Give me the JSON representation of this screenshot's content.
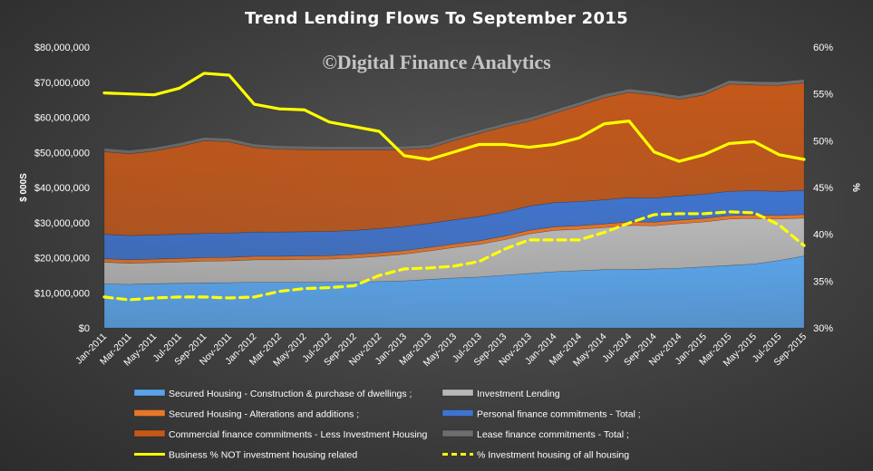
{
  "chart_data": {
    "type": "area",
    "title": "Trend Lending Flows To September 2015",
    "watermark": "©Digital Finance Analytics",
    "ylabel": "$ 000S",
    "y2label": "%",
    "ylim": [
      0,
      80000000
    ],
    "y2lim": [
      30,
      60
    ],
    "yticks": [
      "$0",
      "$10,000,000",
      "$20,000,000",
      "$30,000,000",
      "$40,000,000",
      "$50,000,000",
      "$60,000,000",
      "$70,000,000",
      "$80,000,000"
    ],
    "y2ticks": [
      "30%",
      "35%",
      "40%",
      "45%",
      "50%",
      "55%",
      "60%"
    ],
    "xtick_labels": [
      "Jan-2011",
      "Mar-2011",
      "May-2011",
      "Jul-2011",
      "Sep-2011",
      "Nov-2011",
      "Jan-2012",
      "Mar-2012",
      "May-2012",
      "Jul-2012",
      "Sep-2012",
      "Nov-2012",
      "Jan-2013",
      "Mar-2013",
      "May-2013",
      "Jul-2013",
      "Sep-2013",
      "Nov-2013",
      "Jan-2014",
      "Mar-2014",
      "May-2014",
      "Jul-2014",
      "Sep-2014",
      "Nov-2014",
      "Jan-2015",
      "Mar-2015",
      "May-2015",
      "Jul-2015",
      "Sep-2015"
    ],
    "x": [
      "Jan-2011",
      "Mar-2011",
      "May-2011",
      "Jul-2011",
      "Sep-2011",
      "Nov-2011",
      "Jan-2012",
      "Mar-2012",
      "May-2012",
      "Jul-2012",
      "Sep-2012",
      "Nov-2012",
      "Jan-2013",
      "Mar-2013",
      "May-2013",
      "Jul-2013",
      "Sep-2013",
      "Nov-2013",
      "Jan-2014",
      "Mar-2014",
      "May-2014",
      "Jul-2014",
      "Sep-2014",
      "Nov-2014",
      "Jan-2015",
      "Mar-2015",
      "May-2015",
      "Jul-2015",
      "Sep-2015"
    ],
    "stack_series": [
      {
        "name": "Secured Housing - Construction & purchase of dwellings ;",
        "color": "#5aa3e8",
        "values": [
          12.5,
          12.4,
          12.6,
          12.7,
          12.8,
          12.9,
          13.0,
          13.0,
          13.0,
          13.0,
          13.1,
          13.2,
          13.4,
          13.8,
          14.2,
          14.5,
          15.0,
          15.5,
          16.0,
          16.3,
          16.6,
          16.6,
          16.8,
          17.0,
          17.4,
          17.8,
          18.2,
          19.2,
          20.5
        ]
      },
      {
        "name": "Investment Lending",
        "color": "#b8b8b8",
        "values": [
          6.2,
          6.0,
          6.0,
          6.1,
          6.2,
          6.2,
          6.4,
          6.4,
          6.5,
          6.6,
          6.8,
          7.2,
          7.6,
          8.1,
          8.7,
          9.3,
          10.1,
          11.3,
          11.8,
          11.8,
          12.0,
          12.6,
          12.3,
          12.7,
          12.8,
          13.2,
          13.0,
          11.8,
          10.8
        ]
      },
      {
        "name": "Secured Housing - Alterations and additions ;",
        "color": "#e8762a",
        "values": [
          1.0,
          1.0,
          1.0,
          1.0,
          1.0,
          1.0,
          1.0,
          1.0,
          1.0,
          1.0,
          1.0,
          1.0,
          1.0,
          1.0,
          1.0,
          1.0,
          1.0,
          1.0,
          1.0,
          1.0,
          1.0,
          1.0,
          1.0,
          1.0,
          1.0,
          1.0,
          1.0,
          1.0,
          1.0
        ]
      },
      {
        "name": "Personal finance commitments - Total ;",
        "color": "#3f74cf",
        "values": [
          7.0,
          6.9,
          6.9,
          6.9,
          6.9,
          6.9,
          6.9,
          6.9,
          6.9,
          6.9,
          6.9,
          6.9,
          6.9,
          6.9,
          6.9,
          6.9,
          6.9,
          6.9,
          6.9,
          6.9,
          6.9,
          6.9,
          6.9,
          6.9,
          6.9,
          6.9,
          6.9,
          6.9,
          6.9
        ]
      },
      {
        "name": "Commercial finance commitments - Less Investment Housing",
        "color": "#c4581a",
        "values": [
          23.5,
          23.3,
          23.9,
          25.0,
          26.4,
          26.0,
          24.1,
          23.6,
          23.4,
          23.2,
          22.9,
          22.4,
          21.9,
          21.4,
          22.6,
          23.7,
          24.3,
          24.2,
          25.4,
          27.3,
          29.1,
          30.0,
          29.3,
          27.5,
          28.3,
          30.6,
          30.1,
          30.2,
          30.6
        ]
      },
      {
        "name": "Lease finance commitments - Total ;",
        "color": "#6e6e6e",
        "values": [
          1.0,
          1.0,
          1.0,
          1.0,
          1.0,
          1.0,
          1.0,
          1.0,
          1.0,
          1.0,
          1.0,
          1.0,
          1.0,
          1.0,
          1.0,
          1.0,
          1.0,
          1.0,
          1.0,
          1.0,
          1.0,
          1.0,
          1.0,
          1.0,
          1.0,
          1.0,
          1.0,
          1.0,
          1.0
        ]
      }
    ],
    "value_unit_note_multiplier": 1000000,
    "line_series": [
      {
        "name": "Business % NOT investment housing related",
        "color": "#ffff00",
        "style": "solid",
        "values": [
          55.1,
          55.0,
          54.9,
          55.6,
          57.2,
          57.0,
          53.9,
          53.4,
          53.3,
          52.0,
          51.5,
          51.0,
          48.4,
          48.0,
          48.8,
          49.6,
          49.6,
          49.3,
          49.6,
          50.3,
          51.8,
          52.1,
          48.8,
          47.8,
          48.5,
          49.7,
          49.9,
          48.5,
          48.0
        ]
      },
      {
        "name": "% Investment housing of all housing",
        "color": "#ffff00",
        "style": "dashed",
        "values": [
          33.3,
          33.0,
          33.2,
          33.3,
          33.3,
          33.2,
          33.3,
          33.9,
          34.2,
          34.3,
          34.5,
          35.6,
          36.3,
          36.4,
          36.6,
          37.1,
          38.4,
          39.4,
          39.4,
          39.4,
          40.2,
          41.2,
          42.1,
          42.2,
          42.2,
          42.4,
          42.3,
          41.0,
          38.8
        ]
      }
    ],
    "legend": {
      "position": "bottom",
      "order": [
        "Secured Housing - Construction & purchase of dwellings ;",
        "Investment Lending",
        "Secured Housing - Alterations and additions ;",
        "Personal finance commitments - Total ;",
        "Commercial finance commitments - Less Investment Housing",
        "Lease finance commitments - Total ;",
        "Business % NOT investment housing related",
        "% Investment housing of all housing"
      ]
    },
    "grid": false
  }
}
